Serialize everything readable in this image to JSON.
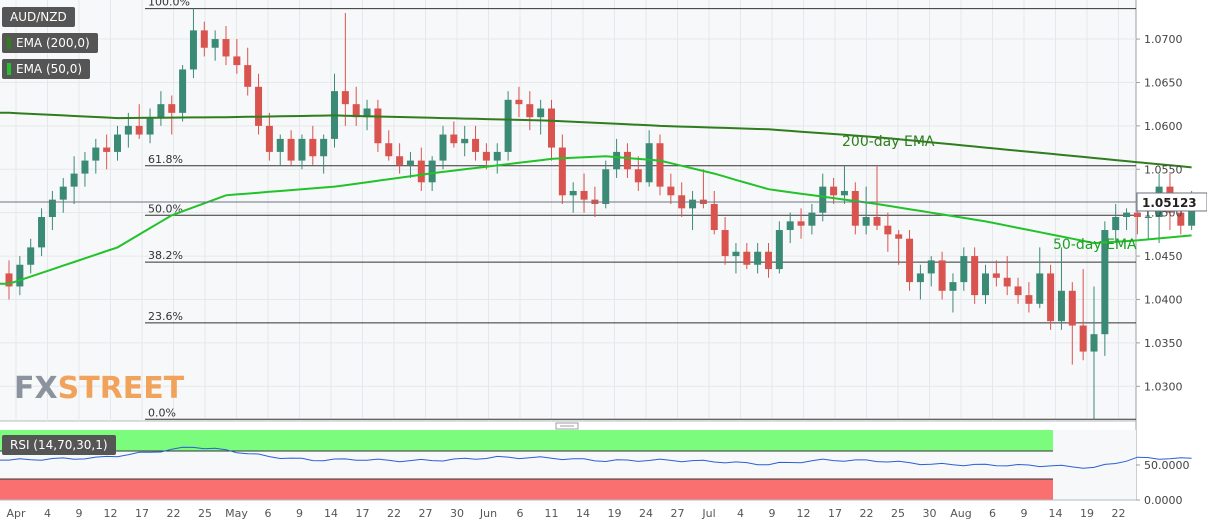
{
  "symbol": "AUD/NZD",
  "overlays": [
    {
      "label": "EMA (200,0)",
      "color": "#2f7d1e"
    },
    {
      "label": "EMA (50,0)",
      "color": "#22c22a"
    }
  ],
  "watermark": {
    "part1": "FX",
    "part2": "STREET"
  },
  "colors": {
    "up": "#3b8a76",
    "down": "#d9534f",
    "ema200": "#2f7d1e",
    "ema50": "#22c22a",
    "rsi_band_top": "#7cfc7c",
    "rsi_band_bottom": "#fa7070",
    "rsi_line": "#2a5fd6"
  },
  "chart_data": {
    "type": "candlestick",
    "symbol": "AUD/NZD",
    "last_price": "1.05123",
    "ylim": [
      1.026,
      1.0745
    ],
    "y_ticks": [
      "1.0300",
      "1.0350",
      "1.0400",
      "1.0450",
      "1.0500",
      "1.0550",
      "1.0600",
      "1.0650",
      "1.0700"
    ],
    "x_tick_labels": [
      "Apr",
      "4",
      "9",
      "12",
      "17",
      "22",
      "25",
      "May",
      "6",
      "9",
      "14",
      "17",
      "22",
      "27",
      "30",
      "Jun",
      "6",
      "11",
      "14",
      "19",
      "24",
      "27",
      "Jul",
      "4",
      "9",
      "12",
      "17",
      "22",
      "25",
      "30",
      "Aug",
      "6",
      "9",
      "14",
      "19",
      "22"
    ],
    "fibonacci": [
      {
        "label": "100.0%",
        "value": 1.0735
      },
      {
        "label": "61.8%",
        "value": 1.0554
      },
      {
        "label": "50.0%",
        "value": 1.0497
      },
      {
        "label": "38.2%",
        "value": 1.0443
      },
      {
        "label": "23.6%",
        "value": 1.0373
      },
      {
        "label": "0.0%",
        "value": 1.0262
      }
    ],
    "annotations": [
      "200-day EMA",
      "50-day EMA"
    ],
    "candles": [
      [
        1.043,
        1.0445,
        1.04,
        1.0415
      ],
      [
        1.0415,
        1.045,
        1.0405,
        1.044
      ],
      [
        1.044,
        1.047,
        1.043,
        1.046
      ],
      [
        1.046,
        1.0505,
        1.045,
        1.0495
      ],
      [
        1.0495,
        1.0525,
        1.048,
        1.0515
      ],
      [
        1.0515,
        1.054,
        1.05,
        1.053
      ],
      [
        1.053,
        1.0565,
        1.051,
        1.0545
      ],
      [
        1.0545,
        1.057,
        1.053,
        1.056
      ],
      [
        1.056,
        1.0585,
        1.0545,
        1.0575
      ],
      [
        1.0575,
        1.059,
        1.055,
        1.057
      ],
      [
        1.057,
        1.06,
        1.056,
        1.059
      ],
      [
        1.059,
        1.0615,
        1.0575,
        1.06
      ],
      [
        1.06,
        1.0625,
        1.0585,
        1.059
      ],
      [
        1.059,
        1.062,
        1.058,
        1.061
      ],
      [
        1.061,
        1.064,
        1.06,
        1.0625
      ],
      [
        1.0625,
        1.0635,
        1.059,
        1.0615
      ],
      [
        1.0615,
        1.067,
        1.0605,
        1.0665
      ],
      [
        1.0665,
        1.0735,
        1.0655,
        1.071
      ],
      [
        1.071,
        1.072,
        1.068,
        1.069
      ],
      [
        1.069,
        1.071,
        1.0675,
        1.07
      ],
      [
        1.07,
        1.0715,
        1.067,
        1.068
      ],
      [
        1.068,
        1.07,
        1.066,
        1.067
      ],
      [
        1.067,
        1.069,
        1.0635,
        1.0645
      ],
      [
        1.0645,
        1.066,
        1.059,
        1.06
      ],
      [
        1.06,
        1.0615,
        1.056,
        1.057
      ],
      [
        1.057,
        1.059,
        1.0555,
        1.0585
      ],
      [
        1.0585,
        1.0595,
        1.0555,
        1.056
      ],
      [
        1.056,
        1.059,
        1.055,
        1.0585
      ],
      [
        1.0585,
        1.06,
        1.0555,
        1.0565
      ],
      [
        1.0565,
        1.059,
        1.0545,
        1.0585
      ],
      [
        1.0585,
        1.066,
        1.0575,
        1.064
      ],
      [
        1.064,
        1.073,
        1.06,
        1.0625
      ],
      [
        1.0625,
        1.0645,
        1.06,
        1.061
      ],
      [
        1.061,
        1.063,
        1.0595,
        1.062
      ],
      [
        1.062,
        1.063,
        1.057,
        1.058
      ],
      [
        1.058,
        1.0595,
        1.056,
        1.0565
      ],
      [
        1.0565,
        1.058,
        1.0545,
        1.0555
      ],
      [
        1.0555,
        1.057,
        1.054,
        1.056
      ],
      [
        1.056,
        1.0575,
        1.0525,
        1.0535
      ],
      [
        1.0535,
        1.0565,
        1.0525,
        1.056
      ],
      [
        1.056,
        1.06,
        1.055,
        1.059
      ],
      [
        1.059,
        1.0605,
        1.0575,
        1.058
      ],
      [
        1.058,
        1.06,
        1.0565,
        1.0585
      ],
      [
        1.0585,
        1.06,
        1.056,
        1.057
      ],
      [
        1.057,
        1.058,
        1.055,
        1.056
      ],
      [
        1.056,
        1.058,
        1.0545,
        1.057
      ],
      [
        1.057,
        1.064,
        1.056,
        1.063
      ],
      [
        1.063,
        1.0645,
        1.061,
        1.0625
      ],
      [
        1.0625,
        1.064,
        1.0595,
        1.061
      ],
      [
        1.061,
        1.063,
        1.059,
        1.062
      ],
      [
        1.062,
        1.063,
        1.056,
        1.0575
      ],
      [
        1.0575,
        1.059,
        1.051,
        1.052
      ],
      [
        1.052,
        1.0535,
        1.05,
        1.0525
      ],
      [
        1.0525,
        1.0545,
        1.05,
        1.0515
      ],
      [
        1.0515,
        1.053,
        1.0495,
        1.051
      ],
      [
        1.051,
        1.056,
        1.0505,
        1.055
      ],
      [
        1.055,
        1.0585,
        1.054,
        1.057
      ],
      [
        1.057,
        1.058,
        1.054,
        1.055
      ],
      [
        1.055,
        1.0565,
        1.0525,
        1.0535
      ],
      [
        1.0535,
        1.0595,
        1.053,
        1.058
      ],
      [
        1.058,
        1.059,
        1.052,
        1.053
      ],
      [
        1.053,
        1.0545,
        1.051,
        1.052
      ],
      [
        1.052,
        1.0535,
        1.0495,
        1.0505
      ],
      [
        1.0505,
        1.0525,
        1.048,
        1.0515
      ],
      [
        1.0515,
        1.055,
        1.0505,
        1.051
      ],
      [
        1.051,
        1.0525,
        1.0475,
        1.048
      ],
      [
        1.048,
        1.0495,
        1.044,
        1.045
      ],
      [
        1.045,
        1.0465,
        1.043,
        1.0455
      ],
      [
        1.0455,
        1.0465,
        1.0435,
        1.044
      ],
      [
        1.044,
        1.0465,
        1.043,
        1.0455
      ],
      [
        1.0455,
        1.0465,
        1.0425,
        1.0435
      ],
      [
        1.0435,
        1.049,
        1.043,
        1.048
      ],
      [
        1.048,
        1.05,
        1.0465,
        1.049
      ],
      [
        1.049,
        1.0505,
        1.047,
        1.0485
      ],
      [
        1.0485,
        1.051,
        1.0475,
        1.05
      ],
      [
        1.05,
        1.0545,
        1.049,
        1.053
      ],
      [
        1.053,
        1.054,
        1.051,
        1.052
      ],
      [
        1.052,
        1.0555,
        1.051,
        1.0525
      ],
      [
        1.0525,
        1.0535,
        1.0475,
        1.0485
      ],
      [
        1.0485,
        1.053,
        1.0475,
        1.0495
      ],
      [
        1.0495,
        1.0555,
        1.048,
        1.0485
      ],
      [
        1.0485,
        1.05,
        1.0455,
        1.0475
      ],
      [
        1.0475,
        1.048,
        1.044,
        1.047
      ],
      [
        1.047,
        1.048,
        1.041,
        1.042
      ],
      [
        1.042,
        1.044,
        1.04,
        1.043
      ],
      [
        1.043,
        1.045,
        1.0415,
        1.0445
      ],
      [
        1.0445,
        1.0455,
        1.04,
        1.041
      ],
      [
        1.041,
        1.043,
        1.0385,
        1.042
      ],
      [
        1.042,
        1.046,
        1.041,
        1.045
      ],
      [
        1.045,
        1.046,
        1.0395,
        1.0405
      ],
      [
        1.0405,
        1.044,
        1.0395,
        1.043
      ],
      [
        1.043,
        1.0445,
        1.0415,
        1.0425
      ],
      [
        1.0425,
        1.045,
        1.0405,
        1.0415
      ],
      [
        1.0415,
        1.0425,
        1.0395,
        1.0405
      ],
      [
        1.0405,
        1.042,
        1.0385,
        1.0395
      ],
      [
        1.0395,
        1.046,
        1.039,
        1.043
      ],
      [
        1.043,
        1.044,
        1.0365,
        1.0375
      ],
      [
        1.0375,
        1.046,
        1.0365,
        1.041
      ],
      [
        1.041,
        1.042,
        1.0325,
        1.037
      ],
      [
        1.037,
        1.0435,
        1.033,
        1.034
      ],
      [
        1.034,
        1.0415,
        1.0262,
        1.036
      ],
      [
        1.036,
        1.049,
        1.0335,
        1.048
      ],
      [
        1.048,
        1.051,
        1.0465,
        1.0495
      ],
      [
        1.0495,
        1.0505,
        1.048,
        1.05
      ],
      [
        1.05,
        1.051,
        1.0475,
        1.0495
      ],
      [
        1.0495,
        1.052,
        1.047,
        1.0495
      ],
      [
        1.0495,
        1.0545,
        1.0465,
        1.053
      ],
      [
        1.053,
        1.0545,
        1.048,
        1.05
      ],
      [
        1.05,
        1.052,
        1.0475,
        1.0485
      ],
      [
        1.0485,
        1.0525,
        1.048,
        1.0512
      ]
    ],
    "ema200": [
      [
        0,
        1.0615
      ],
      [
        10,
        1.0609
      ],
      [
        20,
        1.061
      ],
      [
        30,
        1.0612
      ],
      [
        40,
        1.0609
      ],
      [
        50,
        1.0606
      ],
      [
        60,
        1.06
      ],
      [
        70,
        1.0596
      ],
      [
        80,
        1.0587
      ],
      [
        90,
        1.0575
      ],
      [
        100,
        1.0563
      ],
      [
        110,
        1.0551
      ]
    ],
    "ema50": [
      [
        0,
        1.0418
      ],
      [
        10,
        1.046
      ],
      [
        15,
        1.0497
      ],
      [
        20,
        1.052
      ],
      [
        30,
        1.053
      ],
      [
        40,
        1.0547
      ],
      [
        50,
        1.0562
      ],
      [
        55,
        1.0565
      ],
      [
        60,
        1.056
      ],
      [
        65,
        1.0545
      ],
      [
        70,
        1.0527
      ],
      [
        80,
        1.051
      ],
      [
        90,
        1.049
      ],
      [
        96,
        1.0475
      ],
      [
        100,
        1.0465
      ],
      [
        104,
        1.0468
      ],
      [
        110,
        1.0475
      ]
    ],
    "rsi": {
      "label": "RSI (14,70,30,1)",
      "overbought": 70,
      "oversold": 30,
      "ylim": [
        0,
        100
      ],
      "y_ticks": [
        "50.0000",
        "0.0000"
      ],
      "values": [
        [
          0,
          57
        ],
        [
          8,
          60
        ],
        [
          14,
          70
        ],
        [
          17,
          76
        ],
        [
          20,
          71
        ],
        [
          24,
          62
        ],
        [
          28,
          57
        ],
        [
          32,
          58
        ],
        [
          36,
          56
        ],
        [
          40,
          57
        ],
        [
          45,
          61
        ],
        [
          50,
          60
        ],
        [
          55,
          56
        ],
        [
          60,
          57
        ],
        [
          65,
          55
        ],
        [
          70,
          51
        ],
        [
          75,
          57
        ],
        [
          80,
          56
        ],
        [
          85,
          51
        ],
        [
          90,
          50
        ],
        [
          96,
          49
        ],
        [
          100,
          46
        ],
        [
          104,
          60
        ],
        [
          108,
          59
        ],
        [
          110,
          60
        ]
      ]
    }
  }
}
